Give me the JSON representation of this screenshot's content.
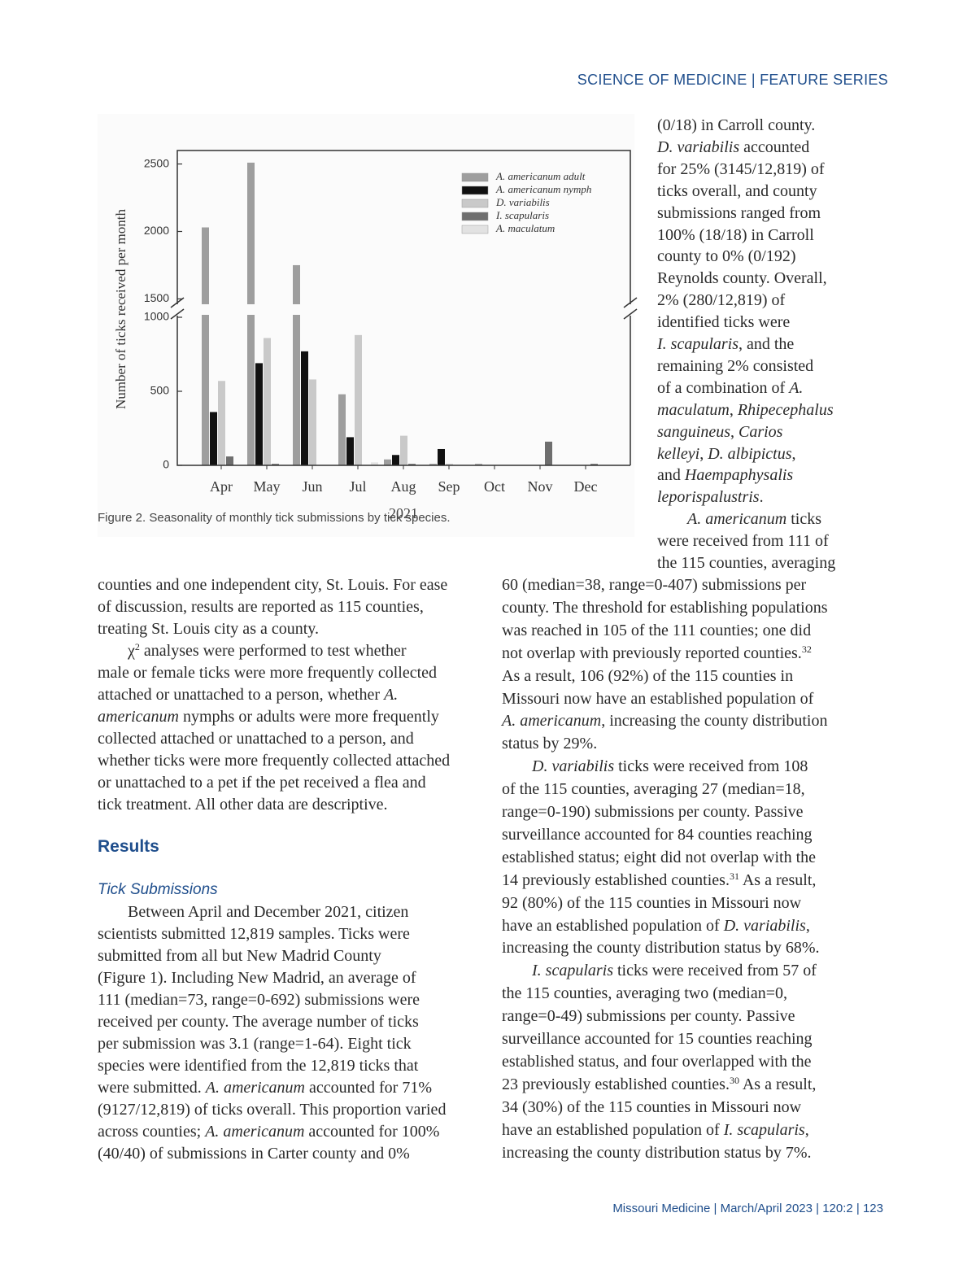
{
  "header": "SCIENCE OF MEDICINE | FEATURE SERIES",
  "chart_data": {
    "type": "bar",
    "y_label": "Number of ticks received per month",
    "x_label": "2021",
    "categories": [
      "Apr",
      "May",
      "Jun",
      "Jul",
      "Aug",
      "Sep",
      "Oct",
      "Nov",
      "Dec"
    ],
    "series": [
      {
        "name": "A. americanum adult",
        "color": "#9e9e9e",
        "values": [
          2030,
          2510,
          1750,
          480,
          40,
          10,
          10,
          0,
          0
        ]
      },
      {
        "name": "A. americanum nymph",
        "color": "#111111",
        "values": [
          360,
          690,
          770,
          190,
          70,
          110,
          0,
          0,
          0
        ]
      },
      {
        "name": "D. variabilis",
        "color": "#c9c9c9",
        "values": [
          570,
          860,
          580,
          880,
          200,
          10,
          0,
          0,
          0
        ]
      },
      {
        "name": "I. scapularis",
        "color": "#6e6e6e",
        "values": [
          60,
          10,
          0,
          0,
          10,
          0,
          0,
          160,
          10
        ]
      },
      {
        "name": "A. maculatum",
        "color": "#e2e2e2",
        "values": [
          0,
          0,
          0,
          20,
          0,
          0,
          0,
          0,
          0
        ]
      }
    ],
    "ylim": [
      0,
      2600
    ],
    "ybreak": [
      1000,
      1400
    ],
    "yticks": [
      0,
      500,
      1000,
      1500,
      2000,
      2500
    ],
    "legend": "top-right"
  },
  "figure_caption": "Figure 2. Seasonality of monthly tick submissions by tick species.",
  "right_column_top": [
    "(0/18) in Carroll county.",
    [
      {
        "em": "D. variabilis"
      },
      " accounted"
    ],
    "for 25% (3145/12,819) of",
    "ticks overall, and county",
    "submissions ranged from",
    "100% (18/18) in Carroll",
    "county to 0% (0/192)",
    "Reynolds county. Overall,",
    "2% (280/12,819) of",
    "identified ticks were",
    [
      {
        "em": "I. scapularis"
      },
      ", and the"
    ],
    "remaining 2% consisted",
    [
      "of a combination of ",
      {
        "em": "A."
      }
    ],
    [
      {
        "em": "maculatum"
      },
      ", ",
      {
        "em": "Rhipecephalus"
      }
    ],
    [
      {
        "em": "sanguineus"
      },
      ", ",
      {
        "em": "Carios"
      }
    ],
    [
      {
        "em": "kelleyi"
      },
      ", ",
      {
        "em": "D. albipictus"
      },
      ","
    ],
    [
      "and ",
      {
        "em": "Haempaphysalis"
      }
    ],
    [
      {
        "em": "leporispalustris"
      },
      "."
    ],
    [
      {
        "em": "A. americanum"
      },
      " ticks"
    ],
    "were received from 111 of",
    "the 115 counties, averaging"
  ],
  "left_column_top": [
    "counties and one independent city, St. Louis. For ease",
    "of discussion, results are reported as 115 counties,",
    "treating St. Louis city as a county.",
    [
      "χ",
      {
        "sup": "2"
      },
      " analyses were performed to test whether"
    ],
    "male or female ticks were more frequently collected",
    [
      "attached or unattached to a person, whether ",
      {
        "em": "A."
      }
    ],
    [
      {
        "em": "americanum"
      },
      " nymphs or adults were more frequently"
    ],
    "collected attached or unattached to a person, and",
    "whether ticks were more frequently collected attached",
    "or unattached to a pet if the pet received a flea and",
    "tick treatment. All other data are descriptive."
  ],
  "results_heading": "Results",
  "subheading": "Tick Submissions",
  "left_column_bottom": [
    "Between April and December 2021, citizen",
    "scientists submitted 12,819 samples. Ticks were",
    "submitted from all but New Madrid County",
    "(Figure 1). Including New Madrid, an average of",
    "111 (median=73, range=0-692) submissions were",
    "received per county. The average number of ticks",
    "per submission was 3.1 (range=1-64). Eight tick",
    "species were identified from the 12,819 ticks that",
    [
      "were submitted. ",
      {
        "em": "A. americanum"
      },
      " accounted for 71%"
    ],
    "(9127/12,819) of ticks overall. This proportion varied",
    [
      "across counties; ",
      {
        "em": "A. americanum"
      },
      " accounted for 100%"
    ],
    "(40/40) of submissions in Carter county and 0%"
  ],
  "right_column_main": [
    "60 (median=38, range=0-407) submissions per",
    "county. The threshold for establishing populations",
    "was reached in 105 of the 111 counties; one did",
    [
      "not overlap with previously reported counties.",
      {
        "sup": "32"
      }
    ],
    "As a result, 106 (92%) of the 115 counties in",
    "Missouri now have an established population of",
    [
      {
        "em": "A. americanum"
      },
      ", increasing the county distribution"
    ],
    "status by 29%.",
    [
      {
        "em": "D. variabilis"
      },
      " ticks were received from 108"
    ],
    "of the 115 counties, averaging 27 (median=18,",
    "range=0-190) submissions per county. Passive",
    "surveillance accounted for 84 counties reaching",
    "established status; eight did not overlap with the",
    [
      "14 previously established counties.",
      {
        "sup": "31"
      },
      " As a result,"
    ],
    "92 (80%) of the 115 counties in Missouri now",
    [
      "have an established population of ",
      {
        "em": "D. variabilis"
      },
      ","
    ],
    "increasing the county distribution status by 68%.",
    [
      {
        "em": "I. scapularis"
      },
      " ticks were received from 57 of"
    ],
    "the 115 counties, averaging two (median=0,",
    "range=0-49) submissions per county. Passive",
    "surveillance accounted for 15 counties reaching",
    "established status, and four overlapped with the",
    [
      "23 previously established counties.",
      {
        "sup": "30"
      },
      " As a result,"
    ],
    "34 (30%) of the 115 counties in Missouri now",
    [
      "have an established population of ",
      {
        "em": "I. scapularis"
      },
      ","
    ],
    "increasing the county distribution status by 7%."
  ],
  "footer": "Missouri Medicine | March/April 2023 | 120:2 | 123"
}
